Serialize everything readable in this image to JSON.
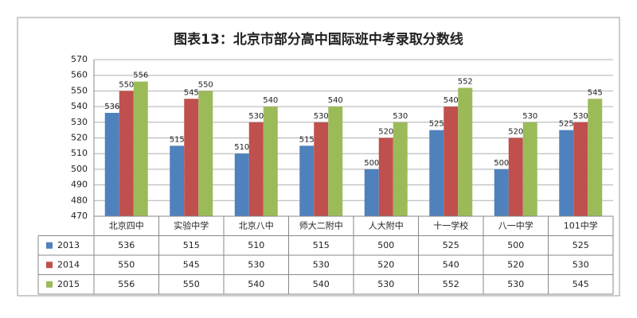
{
  "chart_data": {
    "type": "bar",
    "title": "图表13：北京市部分高中国际班中考录取分数线",
    "categories": [
      "北京四中",
      "实验中学",
      "北京八中",
      "师大二附中",
      "人大附中",
      "十一学校",
      "八一中学",
      "101中学"
    ],
    "series": [
      {
        "name": "2013",
        "color": "#4f81bd",
        "values": [
          536,
          515,
          510,
          515,
          500,
          525,
          500,
          525
        ]
      },
      {
        "name": "2014",
        "color": "#c0504d",
        "values": [
          550,
          545,
          530,
          530,
          520,
          540,
          520,
          530
        ]
      },
      {
        "name": "2015",
        "color": "#9bbb59",
        "values": [
          556,
          550,
          540,
          540,
          530,
          552,
          530,
          545
        ]
      }
    ],
    "ylim": [
      470,
      570
    ],
    "yticks": [
      470,
      480,
      490,
      500,
      510,
      520,
      530,
      540,
      550,
      560,
      570
    ],
    "grid": true
  }
}
